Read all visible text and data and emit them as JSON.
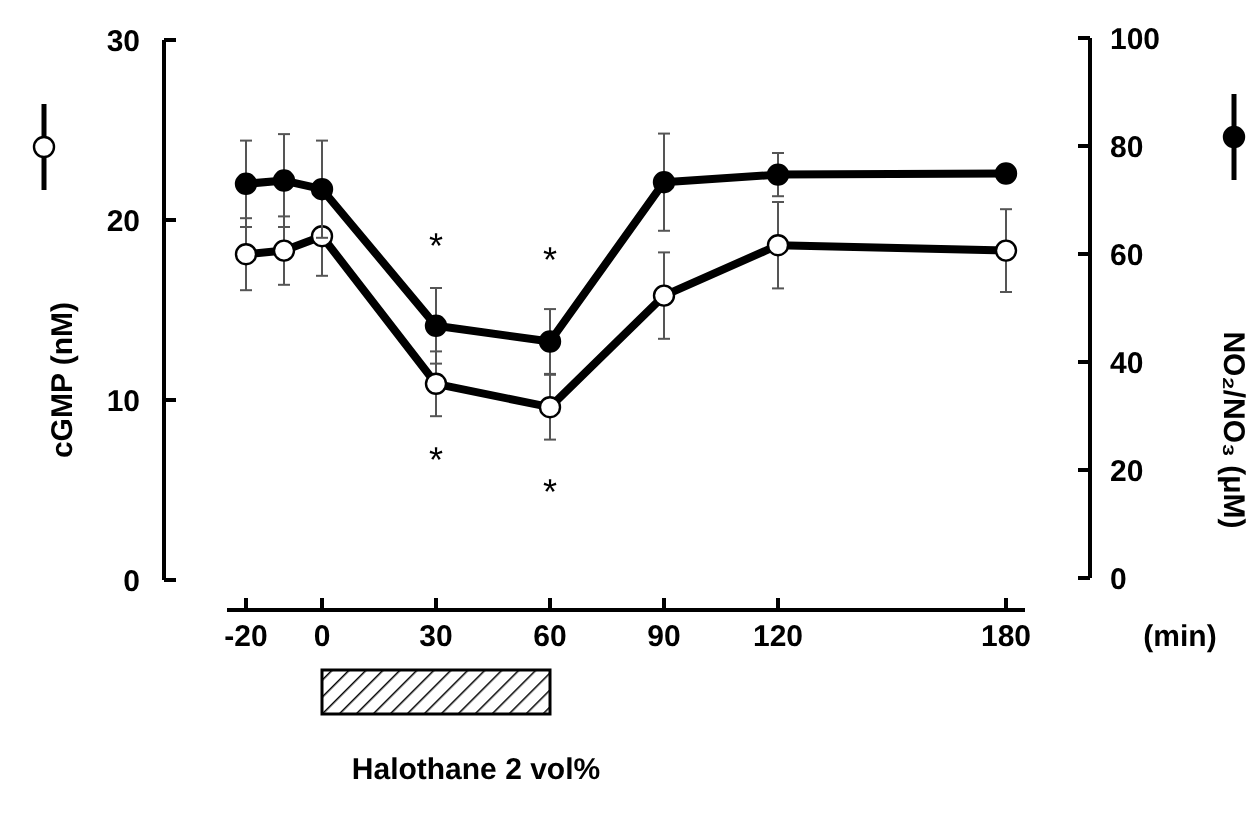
{
  "chart_data": {
    "type": "line",
    "xlabel": "(min)",
    "ylabel": "cGMP (nM)",
    "y2label": "NO₂/NO₃ (μM)",
    "x": [
      -20,
      -10,
      0,
      30,
      60,
      90,
      120,
      180
    ],
    "series": [
      {
        "color": "#000000",
        "axis": "y",
        "values": [
          18.1,
          18.3,
          19.1,
          10.9,
          9.6,
          15.8,
          18.6,
          18.3
        ],
        "errors": [
          2,
          1.9,
          2.2,
          1.8,
          1.8,
          2.4,
          2.4,
          2.3
        ]
      },
      {
        "color": "#000000",
        "axis": "y2",
        "values": [
          73,
          73.6,
          72,
          46.7,
          43.8,
          73.3,
          74.7,
          74.9
        ],
        "errors": [
          8,
          8.6,
          9,
          7,
          6,
          9,
          4,
          1.5
        ]
      }
    ],
    "marker": "circle",
    "line_style": "solid",
    "grid": false,
    "xlim": [
      -25,
      185
    ],
    "xticks": [
      -20,
      0,
      30,
      60,
      90,
      120,
      180
    ],
    "ylim": [
      0,
      30
    ],
    "yticks": [
      0,
      10,
      20,
      30
    ],
    "y2lim": [
      0,
      100
    ],
    "y2ticks": [
      0,
      20,
      40,
      60,
      80,
      100
    ],
    "annotations": [
      "*",
      "*",
      "*",
      "*",
      "Halothane 2 vol%"
    ]
  }
}
